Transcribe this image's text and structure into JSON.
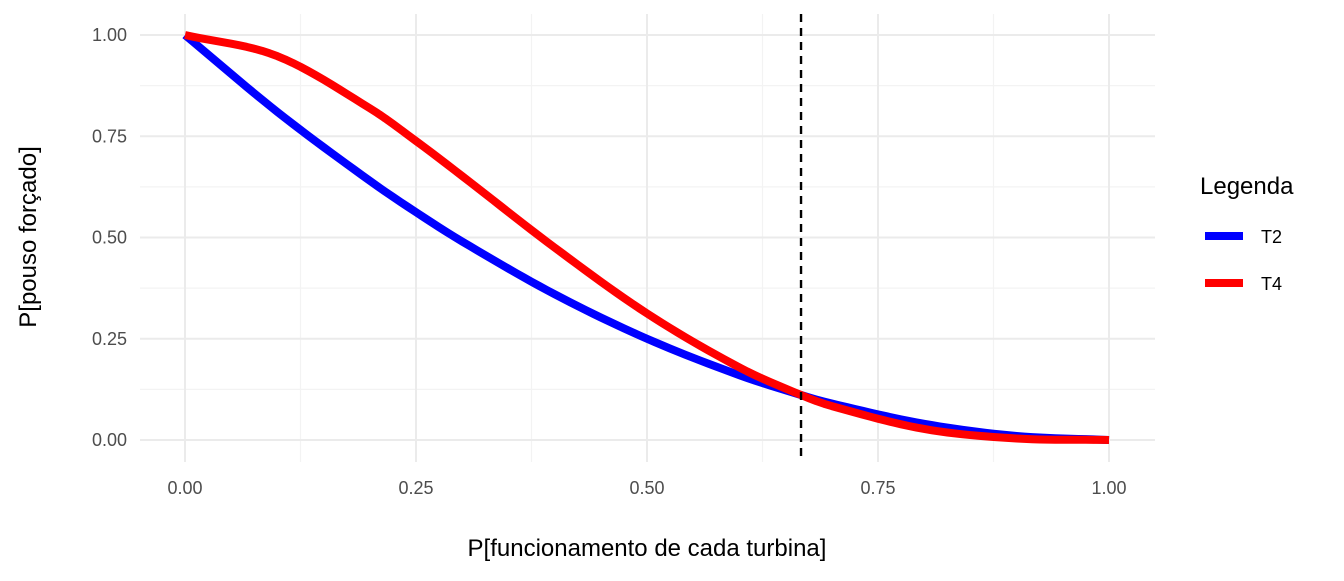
{
  "chart_data": {
    "type": "line",
    "title": "",
    "xlabel": "P[funcionamento de cada turbina]",
    "ylabel": "P[pouso forçado]",
    "xlim": [
      0,
      1
    ],
    "ylim": [
      0,
      1
    ],
    "x_ticks": [
      "0.00",
      "0.25",
      "0.50",
      "0.75",
      "1.00"
    ],
    "y_ticks": [
      "0.00",
      "0.25",
      "0.50",
      "0.75",
      "1.00"
    ],
    "grid": true,
    "legend": {
      "title": "Legenda",
      "position": "right"
    },
    "vline": {
      "x": 0.6667,
      "style": "dashed",
      "color": "#000000"
    },
    "series": [
      {
        "name": "T2",
        "color": "#0000ff",
        "x": [
          0,
          0.1,
          0.2,
          0.25,
          0.3,
          0.4,
          0.5,
          0.6,
          0.6667,
          0.7,
          0.8,
          0.9,
          1.0
        ],
        "values": [
          1.0,
          0.81,
          0.64,
          0.5625,
          0.49,
          0.36,
          0.25,
          0.16,
          0.1111,
          0.09,
          0.04,
          0.01,
          0.0
        ]
      },
      {
        "name": "T4",
        "color": "#ff0000",
        "x": [
          0,
          0.1,
          0.2,
          0.25,
          0.3,
          0.4,
          0.5,
          0.6,
          0.6667,
          0.7,
          0.8,
          0.9,
          1.0
        ],
        "values": [
          1.0,
          0.9477,
          0.8192,
          0.7383,
          0.6517,
          0.4752,
          0.3125,
          0.1792,
          0.1111,
          0.0837,
          0.0272,
          0.0037,
          0.0
        ]
      }
    ]
  }
}
